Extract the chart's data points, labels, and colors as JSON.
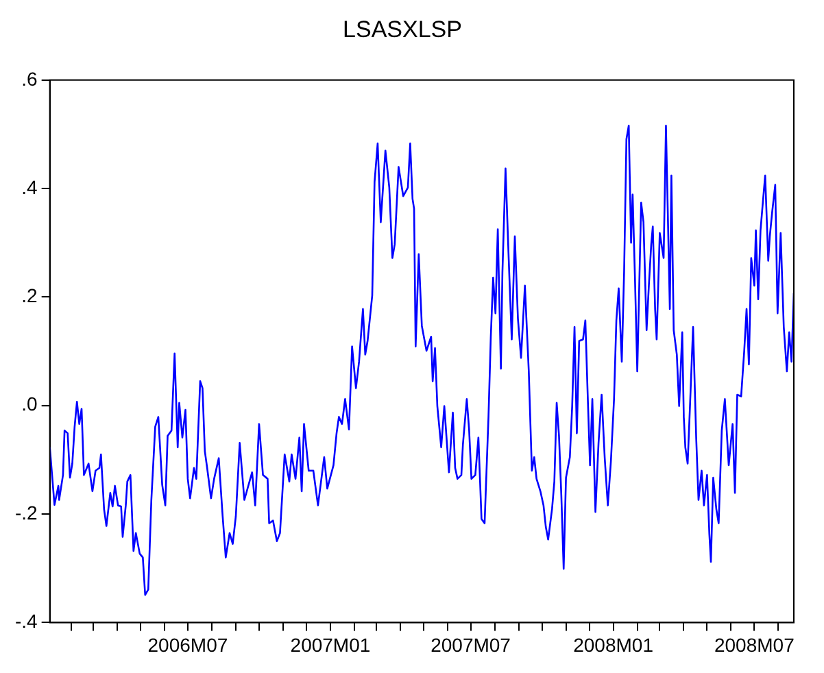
{
  "chart_data": {
    "type": "line",
    "title": "LSASXLSP",
    "color": "#0000ff",
    "x": [
      "2006-01-04",
      "2006-01-10",
      "2006-01-15",
      "2006-01-16",
      "2006-01-21",
      "2006-01-23",
      "2006-01-27",
      "2006-01-30",
      "2006-02-02",
      "2006-02-05",
      "2006-02-08",
      "2006-02-11",
      "2006-02-14",
      "2006-02-17",
      "2006-02-23",
      "2006-02-28",
      "2006-03-04",
      "2006-03-09",
      "2006-03-11",
      "2006-03-15",
      "2006-03-18",
      "2006-03-23",
      "2006-03-26",
      "2006-03-29",
      "2006-04-02",
      "2006-04-06",
      "2006-04-08",
      "2006-04-12",
      "2006-04-14",
      "2006-04-18",
      "2006-04-22",
      "2006-04-25",
      "2006-04-30",
      "2006-05-04",
      "2006-05-07",
      "2006-05-11",
      "2006-05-15",
      "2006-05-20",
      "2006-05-24",
      "2006-05-29",
      "2006-06-02",
      "2006-06-05",
      "2006-06-10",
      "2006-06-14",
      "2006-06-18",
      "2006-06-20",
      "2006-06-24",
      "2006-06-28",
      "2006-07-01",
      "2006-07-04",
      "2006-07-09",
      "2006-07-12",
      "2006-07-17",
      "2006-07-20",
      "2006-07-23",
      "2006-07-26",
      "2006-07-31",
      "2006-08-04",
      "2006-08-10",
      "2006-08-15",
      "2006-08-19",
      "2006-08-24",
      "2006-08-28",
      "2006-09-01",
      "2006-09-06",
      "2006-09-12",
      "2006-09-22",
      "2006-09-26",
      "2006-10-01",
      "2006-10-06",
      "2006-10-12",
      "2006-10-14",
      "2006-10-19",
      "2006-10-24",
      "2006-10-28",
      "2006-11-03",
      "2006-11-09",
      "2006-11-12",
      "2006-11-17",
      "2006-11-22",
      "2006-11-25",
      "2006-11-28",
      "2006-12-04",
      "2006-12-10",
      "2006-12-16",
      "2006-12-24",
      "2006-12-28",
      "2007-01-05",
      "2007-01-09",
      "2007-01-12",
      "2007-01-16",
      "2007-01-20",
      "2007-01-25",
      "2007-01-29",
      "2007-02-03",
      "2007-02-07",
      "2007-02-12",
      "2007-02-15",
      "2007-02-18",
      "2007-02-24",
      "2007-02-27",
      "2007-03-03",
      "2007-03-07",
      "2007-03-13",
      "2007-03-18",
      "2007-03-22",
      "2007-03-25",
      "2007-03-30",
      "2007-04-05",
      "2007-04-11",
      "2007-04-14",
      "2007-04-17",
      "2007-04-19",
      "2007-04-21",
      "2007-04-25",
      "2007-04-29",
      "2007-05-05",
      "2007-05-11",
      "2007-05-13",
      "2007-05-16",
      "2007-05-19",
      "2007-05-24",
      "2007-05-28",
      "2007-06-03",
      "2007-06-08",
      "2007-06-11",
      "2007-06-14",
      "2007-06-19",
      "2007-06-21",
      "2007-06-26",
      "2007-06-29",
      "2007-07-02",
      "2007-07-07",
      "2007-07-11",
      "2007-07-15",
      "2007-07-19",
      "2007-07-24",
      "2007-07-27",
      "2007-07-30",
      "2007-08-02",
      "2007-08-05",
      "2007-08-09",
      "2007-08-11",
      "2007-08-15",
      "2007-08-19",
      "2007-08-23",
      "2007-08-27",
      "2007-08-31",
      "2007-09-04",
      "2007-09-09",
      "2007-09-14",
      "2007-09-18",
      "2007-09-21",
      "2007-09-24",
      "2007-09-29",
      "2007-10-03",
      "2007-10-06",
      "2007-10-09",
      "2007-10-14",
      "2007-10-17",
      "2007-10-20",
      "2007-10-23",
      "2007-10-26",
      "2007-10-29",
      "2007-11-01",
      "2007-11-06",
      "2007-11-09",
      "2007-11-12",
      "2007-11-15",
      "2007-11-18",
      "2007-11-23",
      "2007-11-26",
      "2007-11-29",
      "2007-12-02",
      "2007-12-05",
      "2007-12-09",
      "2007-12-13",
      "2007-12-17",
      "2007-12-21",
      "2007-12-25",
      "2007-12-29",
      "2008-01-02",
      "2008-01-05",
      "2008-01-08",
      "2008-01-12",
      "2008-01-15",
      "2008-01-18",
      "2008-01-21",
      "2008-01-24",
      "2008-01-26",
      "2008-01-29",
      "2008-02-01",
      "2008-02-06",
      "2008-02-09",
      "2008-02-13",
      "2008-02-16",
      "2008-02-19",
      "2008-02-21",
      "2008-02-24",
      "2008-02-26",
      "2008-03-01",
      "2008-03-06",
      "2008-03-09",
      "2008-03-14",
      "2008-03-16",
      "2008-03-19",
      "2008-03-23",
      "2008-03-26",
      "2008-03-30",
      "2008-04-01",
      "2008-04-03",
      "2008-04-06",
      "2008-04-09",
      "2008-04-13",
      "2008-04-17",
      "2008-04-20",
      "2008-04-24",
      "2008-04-27",
      "2008-05-01",
      "2008-05-04",
      "2008-05-06",
      "2008-05-09",
      "2008-05-13",
      "2008-05-16",
      "2008-05-20",
      "2008-05-24",
      "2008-05-29",
      "2008-06-03",
      "2008-06-06",
      "2008-06-09",
      "2008-06-14",
      "2008-06-18",
      "2008-06-21",
      "2008-06-24",
      "2008-06-27",
      "2008-07-01",
      "2008-07-03",
      "2008-07-06",
      "2008-07-09",
      "2008-07-12",
      "2008-07-15",
      "2008-07-19",
      "2008-07-21",
      "2008-07-24",
      "2008-07-28",
      "2008-07-31",
      "2008-08-04",
      "2008-08-08",
      "2008-08-12",
      "2008-08-15",
      "2008-08-18",
      "2008-08-21"
    ],
    "values": [
      -0.077,
      -0.183,
      -0.148,
      -0.174,
      -0.128,
      -0.046,
      -0.051,
      -0.133,
      -0.107,
      -0.039,
      0.007,
      -0.034,
      -0.006,
      -0.128,
      -0.107,
      -0.158,
      -0.12,
      -0.115,
      -0.09,
      -0.191,
      -0.222,
      -0.161,
      -0.186,
      -0.148,
      -0.184,
      -0.186,
      -0.242,
      -0.184,
      -0.14,
      -0.128,
      -0.268,
      -0.235,
      -0.273,
      -0.28,
      -0.349,
      -0.339,
      -0.174,
      -0.039,
      -0.021,
      -0.146,
      -0.184,
      -0.056,
      -0.046,
      0.096,
      -0.077,
      0.005,
      -0.059,
      -0.008,
      -0.135,
      -0.171,
      -0.115,
      -0.135,
      0.045,
      0.032,
      -0.084,
      -0.115,
      -0.171,
      -0.135,
      -0.097,
      -0.204,
      -0.28,
      -0.235,
      -0.255,
      -0.204,
      -0.069,
      -0.174,
      -0.123,
      -0.184,
      -0.034,
      -0.128,
      -0.135,
      -0.217,
      -0.212,
      -0.25,
      -0.235,
      -0.09,
      -0.14,
      -0.09,
      -0.135,
      -0.059,
      -0.158,
      -0.034,
      -0.12,
      -0.12,
      -0.184,
      -0.095,
      -0.153,
      -0.11,
      -0.051,
      -0.021,
      -0.034,
      0.012,
      -0.044,
      0.109,
      0.032,
      0.081,
      0.178,
      0.094,
      0.119,
      0.203,
      0.412,
      0.483,
      0.338,
      0.47,
      0.402,
      0.272,
      0.297,
      0.44,
      0.386,
      0.402,
      0.483,
      0.381,
      0.363,
      0.109,
      0.279,
      0.147,
      0.101,
      0.127,
      0.045,
      0.106,
      -0.001,
      -0.077,
      -0.001,
      -0.123,
      -0.013,
      -0.115,
      -0.135,
      -0.128,
      -0.072,
      0.012,
      -0.044,
      -0.135,
      -0.128,
      -0.059,
      -0.209,
      -0.217,
      -0.021,
      0.127,
      0.236,
      0.17,
      0.325,
      0.068,
      0.246,
      0.437,
      0.274,
      0.122,
      0.312,
      0.16,
      0.088,
      0.221,
      0.063,
      -0.12,
      -0.095,
      -0.135,
      -0.158,
      -0.184,
      -0.224,
      -0.247,
      -0.191,
      -0.14,
      0.005,
      -0.056,
      -0.166,
      -0.301,
      -0.133,
      -0.095,
      -0.001,
      0.145,
      -0.051,
      0.119,
      0.122,
      0.157,
      0.02,
      -0.11,
      0.012,
      -0.196,
      -0.069,
      0.02,
      -0.097,
      -0.184,
      -0.102,
      0.012,
      0.157,
      0.216,
      0.081,
      0.246,
      0.491,
      0.516,
      0.3,
      0.389,
      0.236,
      0.063,
      0.374,
      0.338,
      0.139,
      0.223,
      0.297,
      0.33,
      0.178,
      0.122,
      0.318,
      0.272,
      0.516,
      0.178,
      0.424,
      0.139,
      0.094,
      -0.001,
      0.135,
      -0.021,
      -0.077,
      -0.107,
      -0.001,
      0.145,
      -0.059,
      -0.174,
      -0.12,
      -0.184,
      -0.128,
      -0.237,
      -0.288,
      -0.133,
      -0.191,
      -0.217,
      -0.046,
      0.012,
      -0.11,
      -0.034,
      -0.161,
      0.02,
      0.017,
      0.101,
      0.178,
      0.076,
      0.272,
      0.221,
      0.323,
      0.196,
      0.323,
      0.374,
      0.424,
      0.267,
      0.312,
      0.356,
      0.407,
      0.17,
      0.318,
      0.145,
      0.063,
      0.135,
      0.081,
      0.208
    ],
    "xlim": [
      "2006-01-04",
      "2008-08-21"
    ],
    "xticks": [
      {
        "value": "2006-02",
        "label": null
      },
      {
        "value": "2006-03",
        "label": null
      },
      {
        "value": "2006-04",
        "label": null
      },
      {
        "value": "2006-05",
        "label": null
      },
      {
        "value": "2006-06",
        "label": null
      },
      {
        "value": "2006-07",
        "label": "2006M07"
      },
      {
        "value": "2006-08",
        "label": null
      },
      {
        "value": "2006-09",
        "label": null
      },
      {
        "value": "2006-10",
        "label": null
      },
      {
        "value": "2006-11",
        "label": null
      },
      {
        "value": "2006-12",
        "label": null
      },
      {
        "value": "2007-01",
        "label": "2007M01"
      },
      {
        "value": "2007-02",
        "label": null
      },
      {
        "value": "2007-03",
        "label": null
      },
      {
        "value": "2007-04",
        "label": null
      },
      {
        "value": "2007-05",
        "label": null
      },
      {
        "value": "2007-06",
        "label": null
      },
      {
        "value": "2007-07",
        "label": "2007M07"
      },
      {
        "value": "2007-08",
        "label": null
      },
      {
        "value": "2007-09",
        "label": null
      },
      {
        "value": "2007-10",
        "label": null
      },
      {
        "value": "2007-11",
        "label": null
      },
      {
        "value": "2007-12",
        "label": null
      },
      {
        "value": "2008-01",
        "label": "2008M01"
      },
      {
        "value": "2008-02",
        "label": null
      },
      {
        "value": "2008-03",
        "label": null
      },
      {
        "value": "2008-04",
        "label": null
      },
      {
        "value": "2008-05",
        "label": null
      },
      {
        "value": "2008-06",
        "label": null
      },
      {
        "value": "2008-07",
        "label": "2008M07"
      },
      {
        "value": "2008-08",
        "label": null
      }
    ],
    "ylim": [
      -0.4,
      0.6
    ],
    "yticks": [
      {
        "value": -0.4,
        "label": "-.4"
      },
      {
        "value": -0.2,
        "label": "-.2"
      },
      {
        "value": 0,
        "label": ".0"
      },
      {
        "value": 0.2,
        "label": ".2"
      },
      {
        "value": 0.4,
        "label": ".4"
      },
      {
        "value": 0.6,
        "label": ".6"
      }
    ]
  }
}
